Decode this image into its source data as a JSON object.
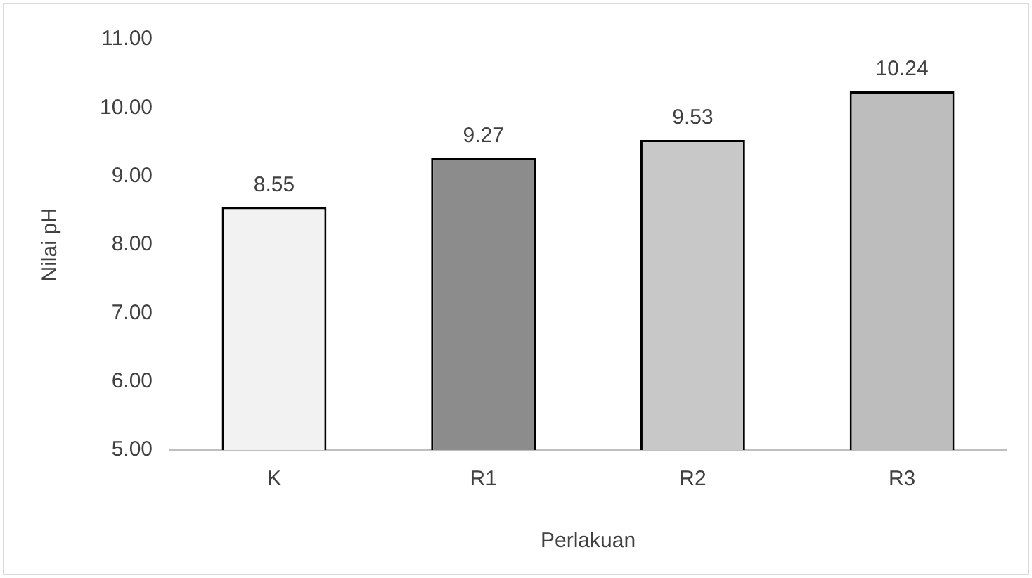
{
  "chart_data": {
    "type": "bar",
    "xlabel": "Perlakuan",
    "ylabel": "Nilai pH",
    "categories": [
      "K",
      "R1",
      "R2",
      "R3"
    ],
    "values": [
      8.55,
      9.27,
      9.53,
      10.24
    ],
    "colors": [
      "#f2f2f2",
      "#8c8c8c",
      "#c8c8c8",
      "#bdbdbd"
    ],
    "ylim": [
      5,
      11
    ],
    "yticks": [
      {
        "value": 5,
        "label": "5.00"
      },
      {
        "value": 6,
        "label": "6.00"
      },
      {
        "value": 7,
        "label": "7.00"
      },
      {
        "value": 8,
        "label": "8.00"
      },
      {
        "value": 9,
        "label": "9.00"
      },
      {
        "value": 10,
        "label": "10.00"
      },
      {
        "value": 11,
        "label": "11.00"
      }
    ],
    "data_labels": true,
    "grid": false,
    "legend": false
  }
}
